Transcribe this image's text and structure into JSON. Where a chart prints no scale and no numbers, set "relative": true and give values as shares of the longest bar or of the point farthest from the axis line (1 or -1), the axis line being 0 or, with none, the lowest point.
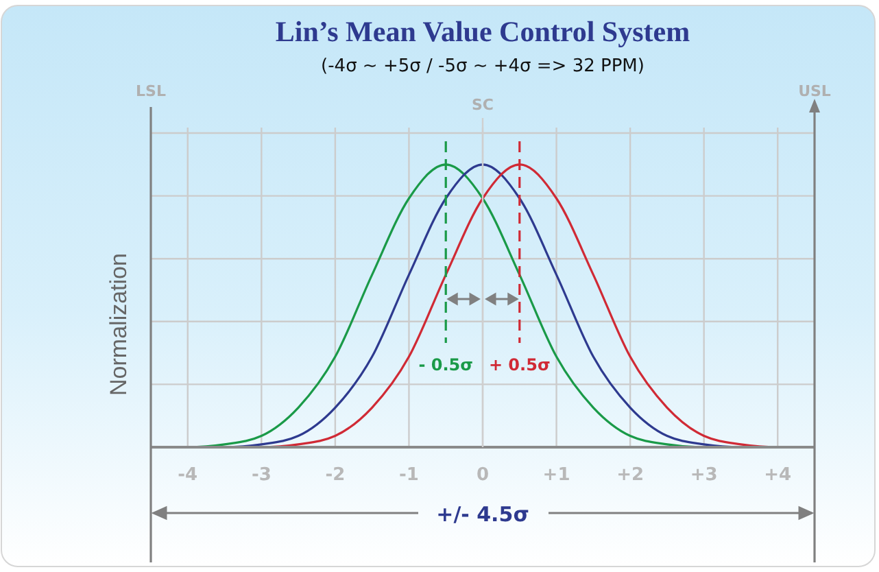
{
  "chart_data": {
    "type": "line",
    "title": "Lin’s Mean Value Control System",
    "subtitle": "(-4σ ~ +5σ / -5σ ~ +4σ => 32 PPM)",
    "ylabel": "Normalization",
    "relative": true,
    "grid": true,
    "xlim": [
      -4.5,
      4.5
    ],
    "xticks": [
      -4,
      -3,
      -2,
      -1,
      0,
      {
        "value": 1,
        "label": "+1"
      },
      {
        "value": 2,
        "label": "+2"
      },
      {
        "value": 3,
        "label": "+3"
      },
      {
        "value": 4,
        "label": "+4"
      }
    ],
    "series": [
      {
        "color": "#1a9a48",
        "x": [
          -4.5,
          -4,
          -3.5,
          -3,
          -2.5,
          -2,
          -1.5,
          -1,
          -0.5,
          0,
          0.5,
          1,
          1.5,
          2,
          2.5,
          3,
          3.5
        ],
        "values": [
          0,
          0,
          0.01,
          0.04,
          0.14,
          0.32,
          0.61,
          0.88,
          1,
          0.88,
          0.61,
          0.32,
          0.14,
          0.04,
          0.01,
          0,
          0
        ]
      },
      {
        "color": "#2e3a8f",
        "x": [
          -4.5,
          -4,
          -3.5,
          -3,
          -2.5,
          -2,
          -1.5,
          -1,
          -0.5,
          0,
          0.5,
          1,
          1.5,
          2,
          2.5,
          3,
          3.5,
          4,
          4.5
        ],
        "values": [
          0,
          0,
          0,
          0.01,
          0.04,
          0.14,
          0.32,
          0.61,
          0.88,
          1,
          0.88,
          0.61,
          0.32,
          0.14,
          0.04,
          0.01,
          0,
          0,
          0
        ]
      },
      {
        "color": "#d02a35",
        "x": [
          -3.5,
          -3,
          -2.5,
          -2,
          -1.5,
          -1,
          -0.5,
          0,
          0.5,
          1,
          1.5,
          2,
          2.5,
          3,
          3.5,
          4,
          4.4
        ],
        "values": [
          0,
          0,
          0.01,
          0.04,
          0.14,
          0.32,
          0.61,
          0.88,
          1,
          0.88,
          0.61,
          0.32,
          0.14,
          0.04,
          0.01,
          0,
          0
        ]
      }
    ],
    "ref_lines": [
      {
        "axis": "x",
        "value": -4.5,
        "label": "LSL",
        "color": "#808080"
      },
      {
        "axis": "x",
        "value": 0,
        "label": "SC",
        "color": "#cfcfcf"
      },
      {
        "axis": "x",
        "value": 4.5,
        "label": "USL",
        "color": "#808080"
      },
      {
        "axis": "x",
        "value": -0.5,
        "label": "- 0.5σ",
        "color": "#1a9a48",
        "line_style": "dashed"
      },
      {
        "axis": "x",
        "value": 0.5,
        "label": "+ 0.5σ",
        "color": "#d02a35",
        "line_style": "dashed"
      }
    ],
    "annotations": [
      "+/- 4.5σ"
    ]
  }
}
